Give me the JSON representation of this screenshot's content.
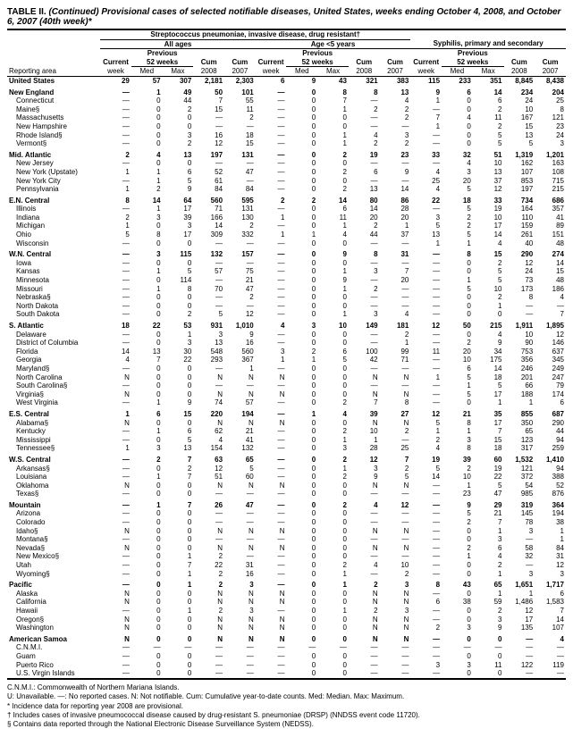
{
  "title_prefix": "TABLE II.",
  "title_main": " (Continued) Provisional cases of selected notifiable diseases, United States, weeks ending October 4, 2008, and October 6, 2007 (40th week)*",
  "section_title": "Streptococcus pneumoniae, invasive disease, drug resistant†",
  "groups": [
    "All ages",
    "Age <5 years",
    "Syphilis, primary and secondary"
  ],
  "prev_label": "Previous",
  "weeks_label": "52 weeks",
  "col_headers": [
    "Reporting area",
    "Current week",
    "Med",
    "Max",
    "Cum 2008",
    "Cum 2007",
    "Current week",
    "Med",
    "Max",
    "Cum 2008",
    "Cum 2007",
    "Current week",
    "Med",
    "Max",
    "Cum 2008",
    "Cum 2007"
  ],
  "mdash": "—",
  "rows": [
    {
      "t": "us",
      "a": "United States",
      "v": [
        "29",
        "57",
        "307",
        "2,181",
        "2,303",
        "6",
        "9",
        "43",
        "321",
        "383",
        "115",
        "233",
        "351",
        "8,845",
        "8,438"
      ]
    },
    {
      "t": "spacer"
    },
    {
      "t": "r",
      "a": "New England",
      "v": [
        "—",
        "1",
        "49",
        "50",
        "101",
        "—",
        "0",
        "8",
        "8",
        "13",
        "9",
        "6",
        "14",
        "234",
        "204"
      ]
    },
    {
      "t": "s",
      "a": "Connecticut",
      "v": [
        "—",
        "0",
        "44",
        "7",
        "55",
        "—",
        "0",
        "7",
        "—",
        "4",
        "1",
        "0",
        "6",
        "24",
        "25"
      ]
    },
    {
      "t": "s",
      "a": "Maine§",
      "v": [
        "—",
        "0",
        "2",
        "15",
        "11",
        "—",
        "0",
        "1",
        "2",
        "2",
        "—",
        "0",
        "2",
        "10",
        "8"
      ]
    },
    {
      "t": "s",
      "a": "Massachusetts",
      "v": [
        "—",
        "0",
        "0",
        "—",
        "2",
        "—",
        "0",
        "0",
        "—",
        "2",
        "7",
        "4",
        "11",
        "167",
        "121"
      ]
    },
    {
      "t": "s",
      "a": "New Hampshire",
      "v": [
        "—",
        "0",
        "0",
        "—",
        "—",
        "—",
        "0",
        "0",
        "—",
        "—",
        "1",
        "0",
        "2",
        "15",
        "23"
      ]
    },
    {
      "t": "s",
      "a": "Rhode Island§",
      "v": [
        "—",
        "0",
        "3",
        "16",
        "18",
        "—",
        "0",
        "1",
        "4",
        "3",
        "—",
        "0",
        "5",
        "13",
        "24"
      ]
    },
    {
      "t": "s",
      "a": "Vermont§",
      "v": [
        "—",
        "0",
        "2",
        "12",
        "15",
        "—",
        "0",
        "1",
        "2",
        "2",
        "—",
        "0",
        "5",
        "5",
        "3"
      ]
    },
    {
      "t": "spacer"
    },
    {
      "t": "r",
      "a": "Mid. Atlantic",
      "v": [
        "2",
        "4",
        "13",
        "197",
        "131",
        "—",
        "0",
        "2",
        "19",
        "23",
        "33",
        "32",
        "51",
        "1,319",
        "1,201"
      ]
    },
    {
      "t": "s",
      "a": "New Jersey",
      "v": [
        "—",
        "0",
        "0",
        "—",
        "—",
        "—",
        "0",
        "0",
        "—",
        "—",
        "—",
        "4",
        "10",
        "162",
        "163"
      ]
    },
    {
      "t": "s",
      "a": "New York (Upstate)",
      "v": [
        "1",
        "1",
        "6",
        "52",
        "47",
        "—",
        "0",
        "2",
        "6",
        "9",
        "4",
        "3",
        "13",
        "107",
        "108"
      ]
    },
    {
      "t": "s",
      "a": "New York City",
      "v": [
        "—",
        "1",
        "5",
        "61",
        "—",
        "—",
        "0",
        "0",
        "—",
        "—",
        "25",
        "20",
        "37",
        "853",
        "715"
      ]
    },
    {
      "t": "s",
      "a": "Pennsylvania",
      "v": [
        "1",
        "2",
        "9",
        "84",
        "84",
        "—",
        "0",
        "2",
        "13",
        "14",
        "4",
        "5",
        "12",
        "197",
        "215"
      ]
    },
    {
      "t": "spacer"
    },
    {
      "t": "r",
      "a": "E.N. Central",
      "v": [
        "8",
        "14",
        "64",
        "560",
        "595",
        "2",
        "2",
        "14",
        "80",
        "86",
        "22",
        "18",
        "33",
        "734",
        "686"
      ]
    },
    {
      "t": "s",
      "a": "Illinois",
      "v": [
        "—",
        "1",
        "17",
        "71",
        "131",
        "—",
        "0",
        "6",
        "14",
        "28",
        "—",
        "5",
        "19",
        "164",
        "357"
      ]
    },
    {
      "t": "s",
      "a": "Indiana",
      "v": [
        "2",
        "3",
        "39",
        "166",
        "130",
        "1",
        "0",
        "11",
        "20",
        "20",
        "3",
        "2",
        "10",
        "110",
        "41"
      ]
    },
    {
      "t": "s",
      "a": "Michigan",
      "v": [
        "1",
        "0",
        "3",
        "14",
        "2",
        "—",
        "0",
        "1",
        "2",
        "1",
        "5",
        "2",
        "17",
        "159",
        "89"
      ]
    },
    {
      "t": "s",
      "a": "Ohio",
      "v": [
        "5",
        "8",
        "17",
        "309",
        "332",
        "1",
        "1",
        "4",
        "44",
        "37",
        "13",
        "5",
        "14",
        "261",
        "151"
      ]
    },
    {
      "t": "s",
      "a": "Wisconsin",
      "v": [
        "—",
        "0",
        "0",
        "—",
        "—",
        "—",
        "0",
        "0",
        "—",
        "—",
        "1",
        "1",
        "4",
        "40",
        "48"
      ]
    },
    {
      "t": "spacer"
    },
    {
      "t": "r",
      "a": "W.N. Central",
      "v": [
        "—",
        "3",
        "115",
        "132",
        "157",
        "—",
        "0",
        "9",
        "8",
        "31",
        "—",
        "8",
        "15",
        "290",
        "274"
      ]
    },
    {
      "t": "s",
      "a": "Iowa",
      "v": [
        "—",
        "0",
        "0",
        "—",
        "—",
        "—",
        "0",
        "0",
        "—",
        "—",
        "—",
        "0",
        "2",
        "12",
        "14"
      ]
    },
    {
      "t": "s",
      "a": "Kansas",
      "v": [
        "—",
        "1",
        "5",
        "57",
        "75",
        "—",
        "0",
        "1",
        "3",
        "7",
        "—",
        "0",
        "5",
        "24",
        "15"
      ]
    },
    {
      "t": "s",
      "a": "Minnesota",
      "v": [
        "—",
        "0",
        "114",
        "—",
        "21",
        "—",
        "0",
        "9",
        "—",
        "20",
        "—",
        "1",
        "5",
        "73",
        "48"
      ]
    },
    {
      "t": "s",
      "a": "Missouri",
      "v": [
        "—",
        "1",
        "8",
        "70",
        "47",
        "—",
        "0",
        "1",
        "2",
        "—",
        "—",
        "5",
        "10",
        "173",
        "186"
      ]
    },
    {
      "t": "s",
      "a": "Nebraska§",
      "v": [
        "—",
        "0",
        "0",
        "—",
        "2",
        "—",
        "0",
        "0",
        "—",
        "—",
        "—",
        "0",
        "2",
        "8",
        "4"
      ]
    },
    {
      "t": "s",
      "a": "North Dakota",
      "v": [
        "—",
        "0",
        "0",
        "—",
        "—",
        "—",
        "0",
        "0",
        "—",
        "—",
        "—",
        "0",
        "1",
        "—",
        "—"
      ]
    },
    {
      "t": "s",
      "a": "South Dakota",
      "v": [
        "—",
        "0",
        "2",
        "5",
        "12",
        "—",
        "0",
        "1",
        "3",
        "4",
        "—",
        "0",
        "0",
        "—",
        "7"
      ]
    },
    {
      "t": "spacer"
    },
    {
      "t": "r",
      "a": "S. Atlantic",
      "v": [
        "18",
        "22",
        "53",
        "931",
        "1,010",
        "4",
        "3",
        "10",
        "149",
        "181",
        "12",
        "50",
        "215",
        "1,911",
        "1,895"
      ]
    },
    {
      "t": "s",
      "a": "Delaware",
      "v": [
        "—",
        "0",
        "1",
        "3",
        "9",
        "—",
        "0",
        "0",
        "—",
        "2",
        "—",
        "0",
        "4",
        "10",
        "12"
      ]
    },
    {
      "t": "s",
      "a": "District of Columbia",
      "v": [
        "—",
        "0",
        "3",
        "13",
        "16",
        "—",
        "0",
        "0",
        "—",
        "1",
        "—",
        "2",
        "9",
        "90",
        "146"
      ]
    },
    {
      "t": "s",
      "a": "Florida",
      "v": [
        "14",
        "13",
        "30",
        "548",
        "560",
        "3",
        "2",
        "6",
        "100",
        "99",
        "11",
        "20",
        "34",
        "753",
        "637"
      ]
    },
    {
      "t": "s",
      "a": "Georgia",
      "v": [
        "4",
        "7",
        "22",
        "293",
        "367",
        "1",
        "1",
        "5",
        "42",
        "71",
        "—",
        "10",
        "175",
        "356",
        "345"
      ]
    },
    {
      "t": "s",
      "a": "Maryland§",
      "v": [
        "—",
        "0",
        "0",
        "—",
        "1",
        "—",
        "0",
        "0",
        "—",
        "—",
        "—",
        "6",
        "14",
        "246",
        "249"
      ]
    },
    {
      "t": "s",
      "a": "North Carolina",
      "v": [
        "N",
        "0",
        "0",
        "N",
        "N",
        "N",
        "0",
        "0",
        "N",
        "N",
        "1",
        "5",
        "18",
        "201",
        "247"
      ]
    },
    {
      "t": "s",
      "a": "South Carolina§",
      "v": [
        "—",
        "0",
        "0",
        "—",
        "—",
        "—",
        "0",
        "0",
        "—",
        "—",
        "—",
        "1",
        "5",
        "66",
        "79"
      ]
    },
    {
      "t": "s",
      "a": "Virginia§",
      "v": [
        "N",
        "0",
        "0",
        "N",
        "N",
        "N",
        "0",
        "0",
        "N",
        "N",
        "—",
        "5",
        "17",
        "188",
        "174"
      ]
    },
    {
      "t": "s",
      "a": "West Virginia",
      "v": [
        "—",
        "1",
        "9",
        "74",
        "57",
        "—",
        "0",
        "2",
        "7",
        "8",
        "—",
        "0",
        "1",
        "1",
        "6"
      ]
    },
    {
      "t": "spacer"
    },
    {
      "t": "r",
      "a": "E.S. Central",
      "v": [
        "1",
        "6",
        "15",
        "220",
        "194",
        "—",
        "1",
        "4",
        "39",
        "27",
        "12",
        "21",
        "35",
        "855",
        "687"
      ]
    },
    {
      "t": "s",
      "a": "Alabama§",
      "v": [
        "N",
        "0",
        "0",
        "N",
        "N",
        "N",
        "0",
        "0",
        "N",
        "N",
        "5",
        "8",
        "17",
        "350",
        "290"
      ]
    },
    {
      "t": "s",
      "a": "Kentucky",
      "v": [
        "—",
        "1",
        "6",
        "62",
        "21",
        "—",
        "0",
        "2",
        "10",
        "2",
        "1",
        "1",
        "7",
        "65",
        "44"
      ]
    },
    {
      "t": "s",
      "a": "Mississippi",
      "v": [
        "—",
        "0",
        "5",
        "4",
        "41",
        "—",
        "0",
        "1",
        "1",
        "—",
        "2",
        "3",
        "15",
        "123",
        "94"
      ]
    },
    {
      "t": "s",
      "a": "Tennessee§",
      "v": [
        "1",
        "3",
        "13",
        "154",
        "132",
        "—",
        "0",
        "3",
        "28",
        "25",
        "4",
        "8",
        "18",
        "317",
        "259"
      ]
    },
    {
      "t": "spacer"
    },
    {
      "t": "r",
      "a": "W.S. Central",
      "v": [
        "—",
        "2",
        "7",
        "63",
        "65",
        "—",
        "0",
        "2",
        "12",
        "7",
        "19",
        "39",
        "60",
        "1,532",
        "1,410"
      ]
    },
    {
      "t": "s",
      "a": "Arkansas§",
      "v": [
        "—",
        "0",
        "2",
        "12",
        "5",
        "—",
        "0",
        "1",
        "3",
        "2",
        "5",
        "2",
        "19",
        "121",
        "94"
      ]
    },
    {
      "t": "s",
      "a": "Louisiana",
      "v": [
        "—",
        "1",
        "7",
        "51",
        "60",
        "—",
        "0",
        "2",
        "9",
        "5",
        "14",
        "10",
        "22",
        "372",
        "388"
      ]
    },
    {
      "t": "s",
      "a": "Oklahoma",
      "v": [
        "N",
        "0",
        "0",
        "N",
        "N",
        "N",
        "0",
        "0",
        "N",
        "N",
        "—",
        "1",
        "5",
        "54",
        "52"
      ]
    },
    {
      "t": "s",
      "a": "Texas§",
      "v": [
        "—",
        "0",
        "0",
        "—",
        "—",
        "—",
        "0",
        "0",
        "—",
        "—",
        "—",
        "23",
        "47",
        "985",
        "876"
      ]
    },
    {
      "t": "spacer"
    },
    {
      "t": "r",
      "a": "Mountain",
      "v": [
        "—",
        "1",
        "7",
        "26",
        "47",
        "—",
        "0",
        "2",
        "4",
        "12",
        "—",
        "9",
        "29",
        "319",
        "364"
      ]
    },
    {
      "t": "s",
      "a": "Arizona",
      "v": [
        "—",
        "0",
        "0",
        "—",
        "—",
        "—",
        "0",
        "0",
        "—",
        "—",
        "—",
        "5",
        "21",
        "145",
        "194"
      ]
    },
    {
      "t": "s",
      "a": "Colorado",
      "v": [
        "—",
        "0",
        "0",
        "—",
        "—",
        "—",
        "0",
        "0",
        "—",
        "—",
        "—",
        "2",
        "7",
        "78",
        "38"
      ]
    },
    {
      "t": "s",
      "a": "Idaho§",
      "v": [
        "N",
        "0",
        "0",
        "N",
        "N",
        "N",
        "0",
        "0",
        "N",
        "N",
        "—",
        "0",
        "1",
        "3",
        "1"
      ]
    },
    {
      "t": "s",
      "a": "Montana§",
      "v": [
        "—",
        "0",
        "0",
        "—",
        "—",
        "—",
        "0",
        "0",
        "—",
        "—",
        "—",
        "0",
        "3",
        "—",
        "1"
      ]
    },
    {
      "t": "s",
      "a": "Nevada§",
      "v": [
        "N",
        "0",
        "0",
        "N",
        "N",
        "N",
        "0",
        "0",
        "N",
        "N",
        "—",
        "2",
        "6",
        "58",
        "84"
      ]
    },
    {
      "t": "s",
      "a": "New Mexico§",
      "v": [
        "—",
        "0",
        "1",
        "2",
        "—",
        "—",
        "0",
        "0",
        "—",
        "—",
        "—",
        "1",
        "4",
        "32",
        "31"
      ]
    },
    {
      "t": "s",
      "a": "Utah",
      "v": [
        "—",
        "0",
        "7",
        "22",
        "31",
        "—",
        "0",
        "2",
        "4",
        "10",
        "—",
        "0",
        "2",
        "—",
        "12"
      ]
    },
    {
      "t": "s",
      "a": "Wyoming§",
      "v": [
        "—",
        "0",
        "1",
        "2",
        "16",
        "—",
        "0",
        "1",
        "—",
        "2",
        "—",
        "0",
        "1",
        "3",
        "3"
      ]
    },
    {
      "t": "spacer"
    },
    {
      "t": "r",
      "a": "Pacific",
      "v": [
        "—",
        "0",
        "1",
        "2",
        "3",
        "—",
        "0",
        "1",
        "2",
        "3",
        "8",
        "43",
        "65",
        "1,651",
        "1,717"
      ]
    },
    {
      "t": "s",
      "a": "Alaska",
      "v": [
        "N",
        "0",
        "0",
        "N",
        "N",
        "N",
        "0",
        "0",
        "N",
        "N",
        "—",
        "0",
        "1",
        "1",
        "6"
      ]
    },
    {
      "t": "s",
      "a": "California",
      "v": [
        "N",
        "0",
        "0",
        "N",
        "N",
        "N",
        "0",
        "0",
        "N",
        "N",
        "6",
        "38",
        "59",
        "1,486",
        "1,583"
      ]
    },
    {
      "t": "s",
      "a": "Hawaii",
      "v": [
        "—",
        "0",
        "1",
        "2",
        "3",
        "—",
        "0",
        "1",
        "2",
        "3",
        "—",
        "0",
        "2",
        "12",
        "7"
      ]
    },
    {
      "t": "s",
      "a": "Oregon§",
      "v": [
        "N",
        "0",
        "0",
        "N",
        "N",
        "N",
        "0",
        "0",
        "N",
        "N",
        "—",
        "0",
        "3",
        "17",
        "14"
      ]
    },
    {
      "t": "s",
      "a": "Washington",
      "v": [
        "N",
        "0",
        "0",
        "N",
        "N",
        "N",
        "0",
        "0",
        "N",
        "N",
        "2",
        "3",
        "9",
        "135",
        "107"
      ]
    },
    {
      "t": "spacer"
    },
    {
      "t": "r",
      "a": "American Samoa",
      "v": [
        "N",
        "0",
        "0",
        "N",
        "N",
        "N",
        "0",
        "0",
        "N",
        "N",
        "—",
        "0",
        "0",
        "—",
        "4"
      ]
    },
    {
      "t": "s",
      "a": "C.N.M.I.",
      "v": [
        "—",
        "—",
        "—",
        "—",
        "—",
        "—",
        "—",
        "—",
        "—",
        "—",
        "—",
        "—",
        "—",
        "—",
        "—"
      ]
    },
    {
      "t": "s",
      "a": "Guam",
      "v": [
        "—",
        "0",
        "0",
        "—",
        "—",
        "—",
        "0",
        "0",
        "—",
        "—",
        "—",
        "0",
        "0",
        "—",
        "—"
      ]
    },
    {
      "t": "s",
      "a": "Puerto Rico",
      "v": [
        "—",
        "0",
        "0",
        "—",
        "—",
        "—",
        "0",
        "0",
        "—",
        "—",
        "3",
        "3",
        "11",
        "122",
        "119"
      ]
    },
    {
      "t": "s",
      "a": "U.S. Virgin Islands",
      "v": [
        "—",
        "0",
        "0",
        "—",
        "—",
        "—",
        "0",
        "0",
        "—",
        "—",
        "—",
        "0",
        "0",
        "—",
        "—"
      ]
    }
  ],
  "footnotes": [
    "C.N.M.I.: Commonwealth of Northern Mariana Islands.",
    "U: Unavailable.   —: No reported cases.   N: Not notifiable.   Cum: Cumulative year-to-date counts.   Med: Median.   Max: Maximum.",
    "* Incidence data for reporting year 2008 are provisional.",
    "† Includes cases of invasive pneumococcal disease caused by drug-resistant S. pneumoniae (DRSP) (NNDSS event code 11720).",
    "§ Contains data reported through the National Electronic Disease Surveillance System (NEDSS)."
  ]
}
